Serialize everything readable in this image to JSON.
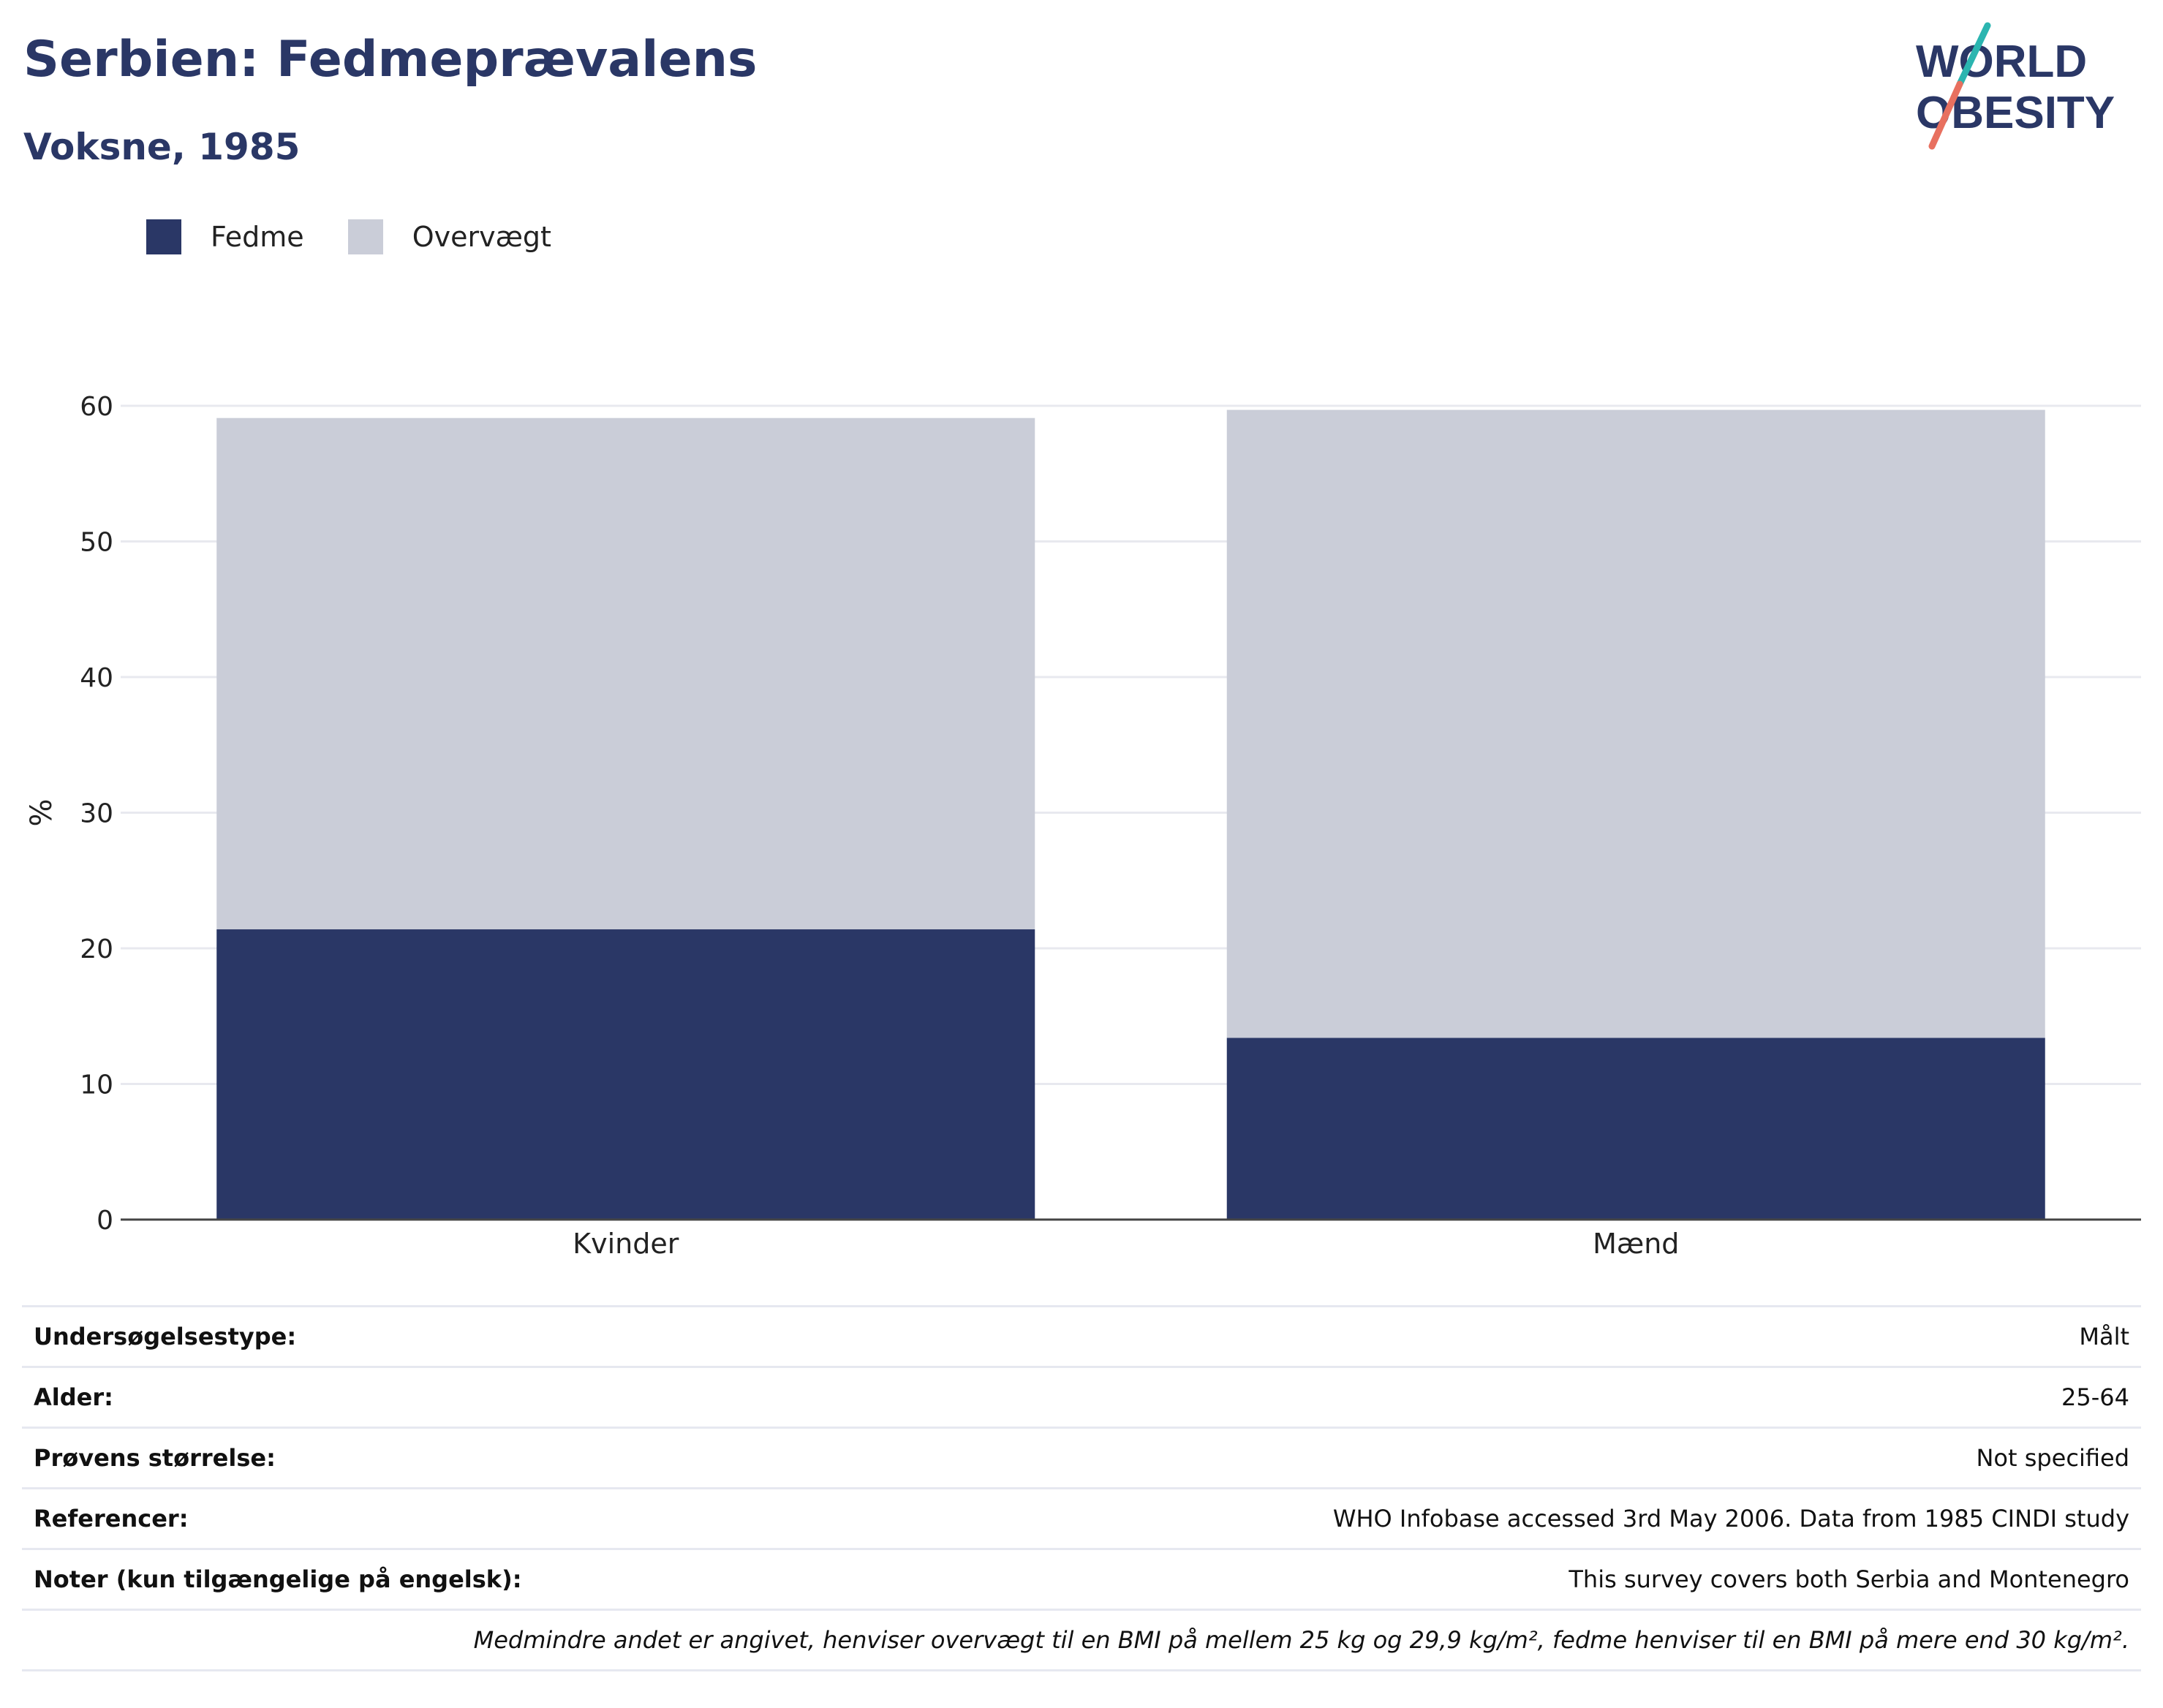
{
  "title": "Serbien: Fedmeprævalens",
  "subtitle": "Voksne, 1985",
  "logo": {
    "line1": "WORLD",
    "line2": "OBESITY"
  },
  "colors": {
    "fedme": "#2a3766",
    "overvaegt": "#cacdd8",
    "title": "#2a3766",
    "accent_teal": "#2bb5b0",
    "accent_coral": "#e8705f"
  },
  "chart_data": {
    "type": "bar",
    "stacked": true,
    "categories": [
      "Kvinder",
      "Mænd"
    ],
    "series": [
      {
        "name": "Fedme",
        "values": [
          21.4,
          13.4
        ]
      },
      {
        "name": "Overvægt",
        "values": [
          37.7,
          46.3
        ]
      }
    ],
    "ylabel": "%",
    "ylim": [
      0,
      60
    ],
    "yticks": [
      0,
      10,
      20,
      30,
      40,
      50,
      60
    ],
    "grid": true,
    "legend_position": "top-left"
  },
  "info_rows": [
    {
      "key": "Undersøgelsestype:",
      "value": "Målt"
    },
    {
      "key": "Alder:",
      "value": "25-64"
    },
    {
      "key": "Prøvens størrelse:",
      "value": "Not specified"
    },
    {
      "key": "Referencer:",
      "value": "WHO Infobase accessed 3rd May 2006. Data from 1985 CINDI study"
    },
    {
      "key": "Noter (kun tilgængelige på engelsk):",
      "value": "This survey covers both Serbia and Montenegro"
    }
  ],
  "footnote": "Medmindre andet er angivet, henviser overvægt til en BMI på mellem 25 kg og 29,9 kg/m², fedme henviser til en BMI på mere end 30 kg/m²."
}
